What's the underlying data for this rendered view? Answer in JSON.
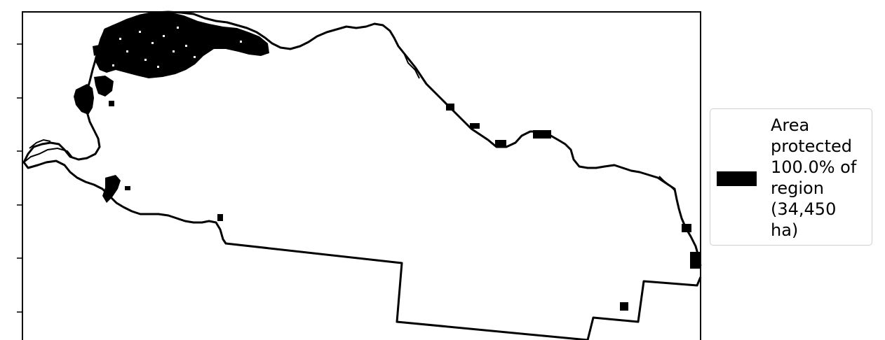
{
  "map": {
    "fill_color": "#000000",
    "outline_color": "#000000",
    "background_color": "#ffffff"
  },
  "legend": {
    "label": "Area\nprotected\n100.0% of\nregion\n(34,450\nha)",
    "swatch_color": "#000000"
  }
}
